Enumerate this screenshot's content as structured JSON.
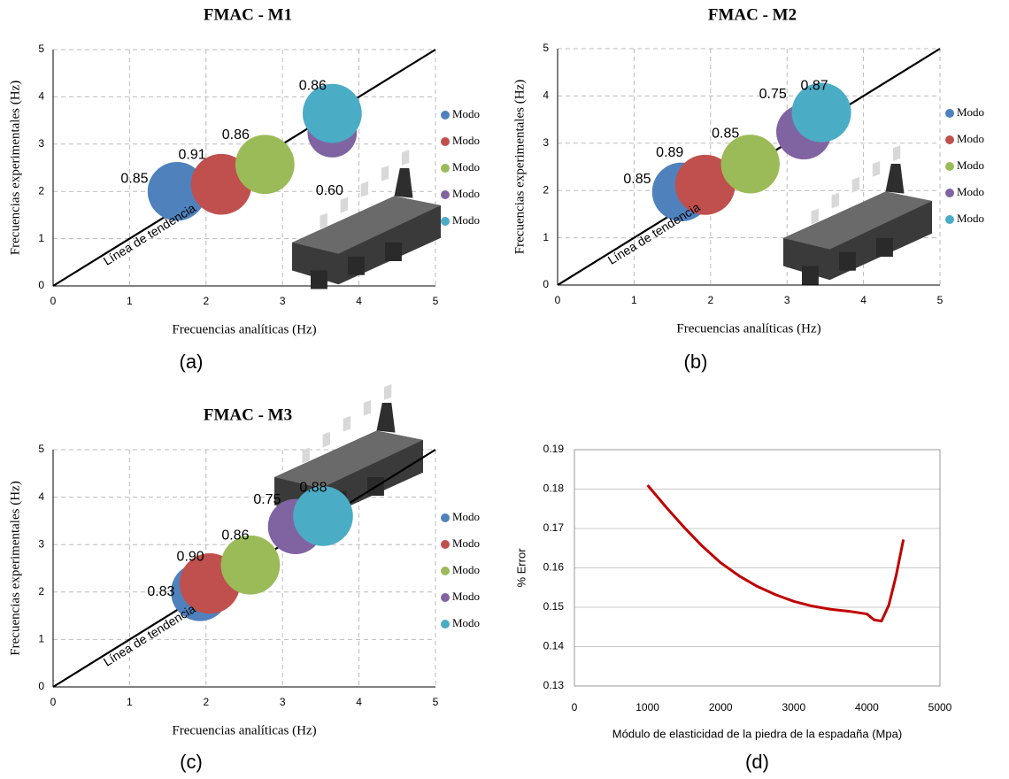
{
  "chart_data": [
    {
      "type": "bubble",
      "title": "FMAC - M1",
      "caption": "(a)",
      "x_label": "Frecuencias analíticas (Hz)",
      "y_label": "Frecuencias experimentales (Hz)",
      "xlim": [
        0,
        5
      ],
      "ylim": [
        0,
        5
      ],
      "xticks": [
        0,
        1,
        2,
        3,
        4,
        5
      ],
      "yticks": [
        0,
        1,
        2,
        3,
        4,
        5
      ],
      "grid": true,
      "trendline": {
        "label": "Línea de tendencia",
        "x": [
          0,
          5
        ],
        "values": [
          0,
          5
        ],
        "color": "#000000"
      },
      "series": [
        {
          "name": "Modo",
          "color": "#4f81bd",
          "x": [
            1.62
          ],
          "values": [
            2.0
          ],
          "sizes": [
            0.85
          ],
          "value_labels": [
            "0.85"
          ]
        },
        {
          "name": "Modo",
          "color": "#c0504d",
          "x": [
            2.2
          ],
          "values": [
            2.15
          ],
          "sizes": [
            0.91
          ],
          "value_labels": [
            "0.91"
          ]
        },
        {
          "name": "Modo",
          "color": "#9bbb59",
          "x": [
            2.77
          ],
          "values": [
            2.57
          ],
          "sizes": [
            0.86
          ],
          "value_labels": [
            "0.86"
          ]
        },
        {
          "name": "Modo",
          "color": "#8064a2",
          "x": [
            3.65
          ],
          "values": [
            3.24
          ],
          "sizes": [
            0.6
          ],
          "value_labels": [
            "0.60"
          ]
        },
        {
          "name": "Modo",
          "color": "#4bacc6",
          "x": [
            3.65
          ],
          "values": [
            3.65
          ],
          "sizes": [
            0.86
          ],
          "value_labels": [
            "0.86"
          ]
        }
      ]
    },
    {
      "type": "bubble",
      "title": "FMAC - M2",
      "caption": "(b)",
      "x_label": "Frecuencias analíticas (Hz)",
      "y_label": "Frecuencias experimentales (Hz)",
      "xlim": [
        0,
        5
      ],
      "ylim": [
        0,
        5
      ],
      "xticks": [
        0,
        1,
        2,
        3,
        4,
        5
      ],
      "yticks": [
        0,
        1,
        2,
        3,
        4,
        5
      ],
      "grid": true,
      "trendline": {
        "label": "Línea de tendencia",
        "x": [
          0,
          5
        ],
        "values": [
          0,
          5
        ],
        "color": "#000000"
      },
      "series": [
        {
          "name": "Modo",
          "color": "#4f81bd",
          "x": [
            1.62
          ],
          "values": [
            1.97
          ],
          "sizes": [
            0.85
          ],
          "value_labels": [
            "0.85"
          ]
        },
        {
          "name": "Modo",
          "color": "#c0504d",
          "x": [
            1.93
          ],
          "values": [
            2.12
          ],
          "sizes": [
            0.89
          ],
          "value_labels": [
            "0.89"
          ]
        },
        {
          "name": "Modo",
          "color": "#9bbb59",
          "x": [
            2.52
          ],
          "values": [
            2.56
          ],
          "sizes": [
            0.85
          ],
          "value_labels": [
            "0.85"
          ]
        },
        {
          "name": "Modo",
          "color": "#8064a2",
          "x": [
            3.22
          ],
          "values": [
            3.24
          ],
          "sizes": [
            0.75
          ],
          "value_labels": [
            "0.75"
          ]
        },
        {
          "name": "Modo",
          "color": "#4bacc6",
          "x": [
            3.45
          ],
          "values": [
            3.65
          ],
          "sizes": [
            0.87
          ],
          "value_labels": [
            "0.87"
          ]
        }
      ]
    },
    {
      "type": "bubble",
      "title": "FMAC - M3",
      "caption": "(c)",
      "x_label": "Frecuencias analíticas (Hz)",
      "y_label": "Frecuencias experimentales (Hz)",
      "xlim": [
        0,
        5
      ],
      "ylim": [
        0,
        5
      ],
      "xticks": [
        0,
        1,
        2,
        3,
        4,
        5
      ],
      "yticks": [
        0,
        1,
        2,
        3,
        4,
        5
      ],
      "grid": true,
      "trendline": {
        "label": "Línea de tendencia",
        "x": [
          0,
          5
        ],
        "values": [
          0,
          5
        ],
        "color": "#000000"
      },
      "series": [
        {
          "name": "Modo",
          "color": "#4f81bd",
          "x": [
            1.92
          ],
          "values": [
            2.0
          ],
          "sizes": [
            0.83
          ],
          "value_labels": [
            "0.83"
          ]
        },
        {
          "name": "Modo",
          "color": "#c0504d",
          "x": [
            2.05
          ],
          "values": [
            2.18
          ],
          "sizes": [
            0.9
          ],
          "value_labels": [
            "0.90"
          ]
        },
        {
          "name": "Modo",
          "color": "#9bbb59",
          "x": [
            2.58
          ],
          "values": [
            2.57
          ],
          "sizes": [
            0.86
          ],
          "value_labels": [
            "0.86"
          ]
        },
        {
          "name": "Modo",
          "color": "#8064a2",
          "x": [
            3.17
          ],
          "values": [
            3.38
          ],
          "sizes": [
            0.75
          ],
          "value_labels": [
            "0.75"
          ]
        },
        {
          "name": "Modo",
          "color": "#4bacc6",
          "x": [
            3.53
          ],
          "values": [
            3.6
          ],
          "sizes": [
            0.88
          ],
          "value_labels": [
            "0.88"
          ]
        }
      ]
    },
    {
      "type": "line",
      "caption": "(d)",
      "x_label": "Módulo de elasticidad de la piedra de la espadaña (Mpa)",
      "y_label": "% Error",
      "xlim": [
        0,
        5000
      ],
      "ylim": [
        0.13,
        0.19
      ],
      "xticks": [
        0,
        1000,
        2000,
        3000,
        4000,
        5000
      ],
      "yticks": [
        0.13,
        0.14,
        0.15,
        0.16,
        0.17,
        0.18,
        0.19
      ],
      "grid": true,
      "color": "#c00000",
      "x": [
        1000,
        1250,
        1500,
        1750,
        2000,
        2250,
        2500,
        2750,
        3000,
        3250,
        3500,
        3750,
        4000,
        4100,
        4200,
        4300,
        4400,
        4500
      ],
      "values": [
        0.181,
        0.1755,
        0.1703,
        0.1655,
        0.1613,
        0.158,
        0.1553,
        0.1532,
        0.1515,
        0.1503,
        0.1495,
        0.149,
        0.1483,
        0.1468,
        0.1465,
        0.1505,
        0.158,
        0.1672
      ]
    }
  ]
}
